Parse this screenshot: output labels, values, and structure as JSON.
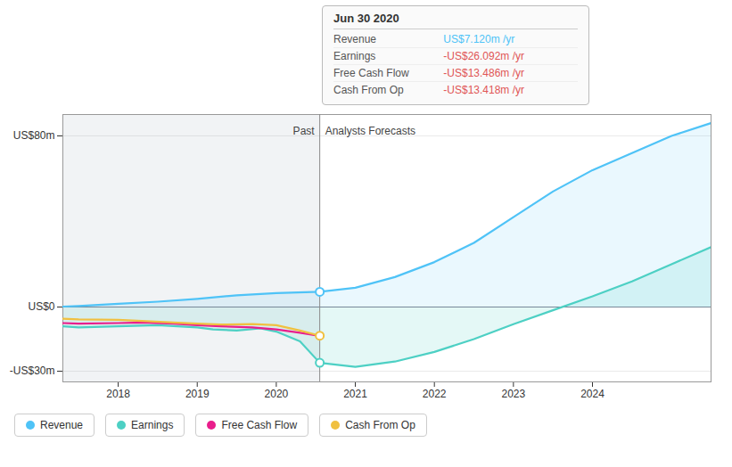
{
  "chart_data": {
    "type": "line",
    "xlim": [
      2017.3,
      2025.5
    ],
    "xticks": [
      2018,
      2019,
      2020,
      2021,
      2022,
      2023,
      2024
    ],
    "ylim": [
      -35,
      90
    ],
    "yticks": [
      {
        "value": 80,
        "label": "US$80m"
      },
      {
        "value": 0,
        "label": "US$0"
      },
      {
        "value": -30,
        "label": "-US$30m"
      }
    ],
    "grid": "y",
    "legend": "bottom",
    "divider_x": 2020.55,
    "region_labels": {
      "past": "Past",
      "forecast": "Analysts Forecasts"
    },
    "series": [
      {
        "name": "Revenue",
        "color": "#4fc3f7",
        "x": [
          2017.3,
          2017.5,
          2018.0,
          2018.5,
          2019.0,
          2019.5,
          2020.0,
          2020.55,
          2021.0,
          2021.5,
          2022.0,
          2022.5,
          2023.0,
          2023.5,
          2024.0,
          2024.5,
          2025.0,
          2025.5
        ],
        "values": [
          0.2,
          0.5,
          1.5,
          2.5,
          3.8,
          5.5,
          6.5,
          7.12,
          9.0,
          14.0,
          21.0,
          30.0,
          42.0,
          54.0,
          64.0,
          72.0,
          80.0,
          86.0
        ]
      },
      {
        "name": "Earnings",
        "color": "#4dd0c4",
        "x": [
          2017.3,
          2017.5,
          2018.0,
          2018.5,
          2019.0,
          2019.2,
          2019.5,
          2019.8,
          2020.0,
          2020.3,
          2020.55,
          2021.0,
          2021.5,
          2022.0,
          2022.5,
          2023.0,
          2023.5,
          2024.0,
          2024.5,
          2025.0,
          2025.5
        ],
        "values": [
          -9.0,
          -9.5,
          -9.0,
          -8.5,
          -9.5,
          -10.5,
          -11.0,
          -10.0,
          -11.5,
          -16.0,
          -26.092,
          -28.0,
          -25.5,
          -21.0,
          -15.0,
          -8.0,
          -1.5,
          5.0,
          12.0,
          20.0,
          28.0
        ]
      },
      {
        "name": "Free Cash Flow",
        "color": "#e91e8c",
        "x": [
          2017.3,
          2017.5,
          2018.0,
          2018.3,
          2018.7,
          2019.0,
          2019.3,
          2019.7,
          2020.0,
          2020.3,
          2020.55
        ],
        "values": [
          -7.5,
          -7.8,
          -7.5,
          -7.2,
          -7.8,
          -8.5,
          -9.0,
          -9.5,
          -10.5,
          -12.0,
          -13.486
        ]
      },
      {
        "name": "Cash From Op",
        "color": "#f0c040",
        "x": [
          2017.3,
          2017.5,
          2018.0,
          2018.3,
          2018.7,
          2019.0,
          2019.3,
          2019.7,
          2020.0,
          2020.3,
          2020.55
        ],
        "values": [
          -5.5,
          -5.8,
          -6.0,
          -6.5,
          -7.2,
          -7.8,
          -8.2,
          -8.0,
          -8.5,
          -11.0,
          -13.418
        ]
      }
    ],
    "markers": [
      {
        "name": "Revenue",
        "x": 2020.55,
        "y": 7.12
      },
      {
        "name": "Earnings",
        "x": 2020.55,
        "y": -26.092
      },
      {
        "name": "Cash From Op",
        "x": 2020.55,
        "y": -13.418
      }
    ],
    "tooltip": {
      "title": "Jun 30 2020",
      "rows": [
        {
          "label": "Revenue",
          "value": "US$7.120m /yr",
          "color": "#4fc3f7"
        },
        {
          "label": "Earnings",
          "value": "-US$26.092m /yr",
          "color": "#e05555"
        },
        {
          "label": "Free Cash Flow",
          "value": "-US$13.486m /yr",
          "color": "#e05555"
        },
        {
          "label": "Cash From Op",
          "value": "-US$13.418m /yr",
          "color": "#e05555"
        }
      ]
    }
  }
}
